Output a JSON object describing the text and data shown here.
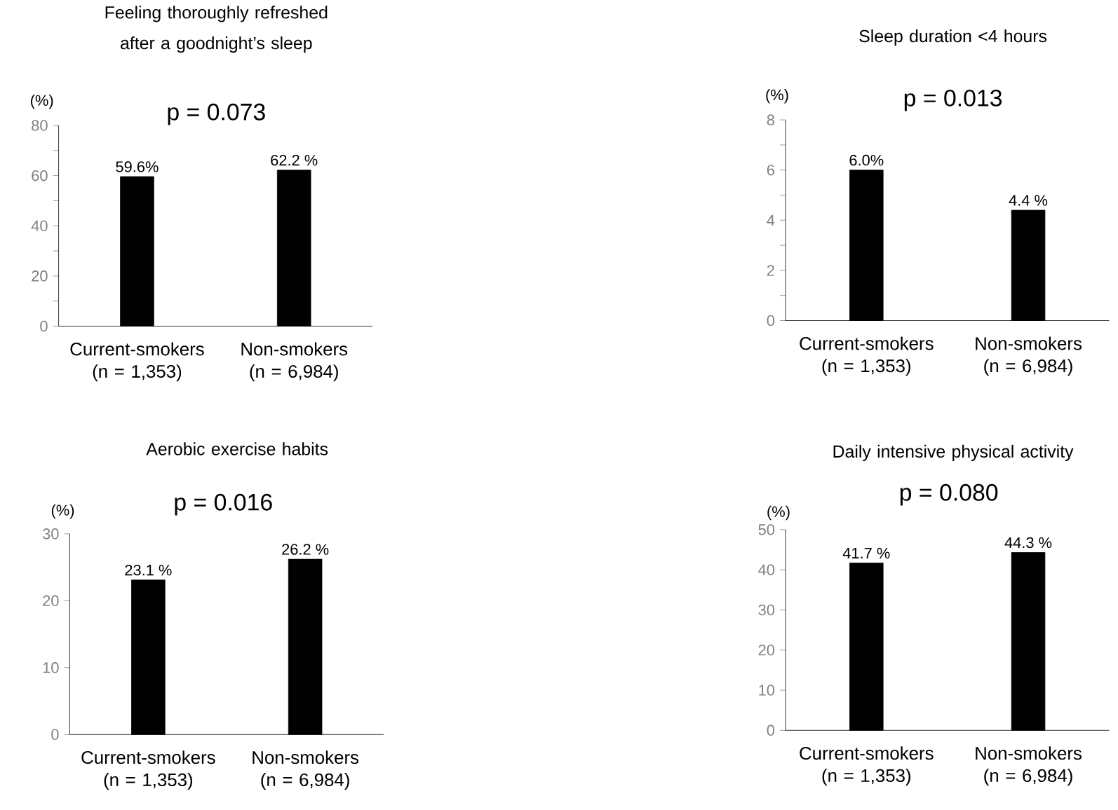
{
  "chart_data": [
    {
      "type": "bar",
      "title": "Feeling thoroughly refreshed after a goodnight’s sleep",
      "ylabel": "(%)",
      "annotations": [
        "p = 0.073"
      ],
      "categories": [
        "Current-smokers (n = 1,353)",
        "Non-smokers (n = 6,984)"
      ],
      "values": [
        59.6,
        62.2
      ],
      "value_labels": [
        "59.6%",
        "62.2 %"
      ],
      "color": "#000000",
      "ylim": [
        0,
        80
      ],
      "yticks": [
        0,
        {
          "value": 10,
          "label": null
        },
        20,
        {
          "value": 30,
          "label": null
        },
        40,
        {
          "value": 50,
          "label": null
        },
        60,
        {
          "value": 70,
          "label": null
        },
        80
      ]
    },
    {
      "type": "bar",
      "title": "Sleep duration <4 hours",
      "ylabel": "(%)",
      "annotations": [
        "p = 0.013"
      ],
      "categories": [
        "Current-smokers (n = 1,353)",
        "Non-smokers (n = 6,984)"
      ],
      "values": [
        6.0,
        4.4
      ],
      "value_labels": [
        "6.0%",
        "4.4 %"
      ],
      "color": "#000000",
      "ylim": [
        0,
        8
      ],
      "yticks": [
        0,
        {
          "value": 1,
          "label": null
        },
        2,
        {
          "value": 3,
          "label": null
        },
        4,
        {
          "value": 5,
          "label": null
        },
        6,
        {
          "value": 7,
          "label": null
        },
        8
      ]
    },
    {
      "type": "bar",
      "title": "Aerobic exercise habits",
      "ylabel": "(%)",
      "annotations": [
        "p = 0.016"
      ],
      "categories": [
        "Current-smokers (n = 1,353)",
        "Non-smokers (n = 6,984)"
      ],
      "values": [
        23.1,
        26.2
      ],
      "value_labels": [
        "23.1 %",
        "26.2 %"
      ],
      "color": "#000000",
      "ylim": [
        0,
        30
      ],
      "yticks": [
        0,
        10,
        20,
        30
      ]
    },
    {
      "type": "bar",
      "title": "Daily intensive physical activity",
      "ylabel": "(%)",
      "annotations": [
        "p = 0.080"
      ],
      "categories": [
        "Current-smokers (n = 1,353)",
        "Non-smokers (n = 6,984)"
      ],
      "values": [
        41.7,
        44.3
      ],
      "value_labels": [
        "41.7 %",
        "44.3 %"
      ],
      "color": "#000000",
      "ylim": [
        0,
        50
      ],
      "yticks": [
        0,
        10,
        20,
        30,
        40,
        50
      ]
    }
  ]
}
